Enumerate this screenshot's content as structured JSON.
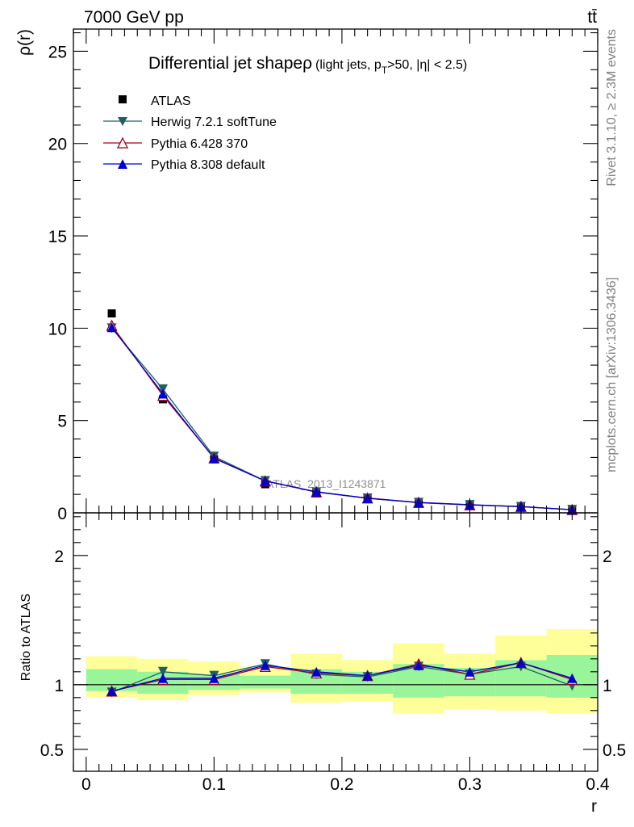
{
  "header": {
    "energy": "7000 GeV pp",
    "process": "tt̄"
  },
  "side_labels": {
    "rivet": "Rivet 3.1.10, ≥ 2.3M events",
    "source": "mcplots.cern.ch [arXiv:1306.3436]"
  },
  "watermark": "ATLAS_2013_I1243871",
  "colors": {
    "atlas": "#000000",
    "herwig": "#1f6060",
    "pythia6": "#a0001a",
    "pythia8": "#0000d0",
    "band_inner": "#99f599",
    "band_outer": "#ffff99"
  },
  "chart_data": [
    {
      "type": "line",
      "title": "Differential jet shape ρ (light jets, p_T>50, |η| < 2.5)",
      "title_main": "Differential jet shape",
      "title_rho": "ρ",
      "title_sub": "(light jets, p",
      "title_sub_idx": "T",
      "title_sub_end": ">50, |η| < 2.5)",
      "ylabel": "ρ(r)",
      "xlim": [
        -0.01,
        0.4
      ],
      "ylim": [
        0,
        26.2
      ],
      "yticks": [
        0,
        5,
        10,
        15,
        20,
        25
      ],
      "ytick_labels": [
        "0",
        "5",
        "10",
        "15",
        "20",
        "25"
      ],
      "x": [
        0.02,
        0.06,
        0.1,
        0.14,
        0.18,
        0.22,
        0.26,
        0.3,
        0.34,
        0.38
      ],
      "series": [
        {
          "name": "ATLAS",
          "marker": "square",
          "values": [
            10.8,
            6.15,
            2.9,
            1.55,
            1.05,
            0.75,
            0.5,
            0.4,
            0.3,
            0.17
          ]
        },
        {
          "name": "Herwig 7.2.1 softTune",
          "marker": "triangle-down",
          "values": [
            10.0,
            6.7,
            3.05,
            1.73,
            1.12,
            0.79,
            0.55,
            0.43,
            0.33,
            0.17
          ]
        },
        {
          "name": "Pythia 6.428 370",
          "marker": "triangle-up-open",
          "values": [
            10.15,
            6.35,
            2.97,
            1.72,
            1.13,
            0.8,
            0.56,
            0.43,
            0.34,
            0.17
          ]
        },
        {
          "name": "Pythia 8.308 default",
          "marker": "triangle-up",
          "values": [
            10.05,
            6.45,
            2.95,
            1.73,
            1.14,
            0.79,
            0.56,
            0.44,
            0.34,
            0.17
          ]
        }
      ]
    },
    {
      "type": "line",
      "ylabel": "Ratio to ATLAS",
      "xlabel": "r",
      "xlim": [
        -0.01,
        0.4
      ],
      "ylim": [
        0.33,
        2.33
      ],
      "yticks": [
        0.5,
        1,
        2
      ],
      "ytick_labels": [
        "0.5",
        "1",
        "2"
      ],
      "xticks": [
        0,
        0.1,
        0.2,
        0.3,
        0.4
      ],
      "xtick_labels": [
        "0",
        "0.1",
        "0.2",
        "0.3",
        "0.4"
      ],
      "x": [
        0.02,
        0.06,
        0.1,
        0.14,
        0.18,
        0.22,
        0.26,
        0.3,
        0.34,
        0.38
      ],
      "bands": {
        "edges": [
          0.0,
          0.04,
          0.08,
          0.12,
          0.16,
          0.2,
          0.24,
          0.28,
          0.32,
          0.36,
          0.4
        ],
        "outer_lo": [
          0.9,
          0.88,
          0.92,
          0.94,
          0.86,
          0.87,
          0.78,
          0.81,
          0.8,
          0.78
        ],
        "outer_hi": [
          1.22,
          1.2,
          1.18,
          1.14,
          1.24,
          1.19,
          1.32,
          1.24,
          1.38,
          1.43
        ],
        "inner_lo": [
          0.95,
          0.93,
          0.96,
          0.97,
          0.93,
          0.93,
          0.9,
          0.91,
          0.91,
          0.9
        ],
        "inner_hi": [
          1.12,
          1.1,
          1.08,
          1.07,
          1.12,
          1.1,
          1.16,
          1.13,
          1.19,
          1.23
        ]
      },
      "series": [
        {
          "name": "Herwig 7.2.1 softTune",
          "values": [
            0.94,
            1.1,
            1.07,
            1.16,
            1.08,
            1.06,
            1.14,
            1.08,
            1.14,
            0.99
          ]
        },
        {
          "name": "Pythia 6.428 370",
          "values": [
            0.95,
            1.04,
            1.04,
            1.14,
            1.09,
            1.07,
            1.16,
            1.08,
            1.17,
            1.04
          ]
        },
        {
          "name": "Pythia 8.308 default",
          "values": [
            0.95,
            1.05,
            1.05,
            1.15,
            1.1,
            1.07,
            1.15,
            1.1,
            1.17,
            1.05
          ]
        }
      ]
    }
  ]
}
